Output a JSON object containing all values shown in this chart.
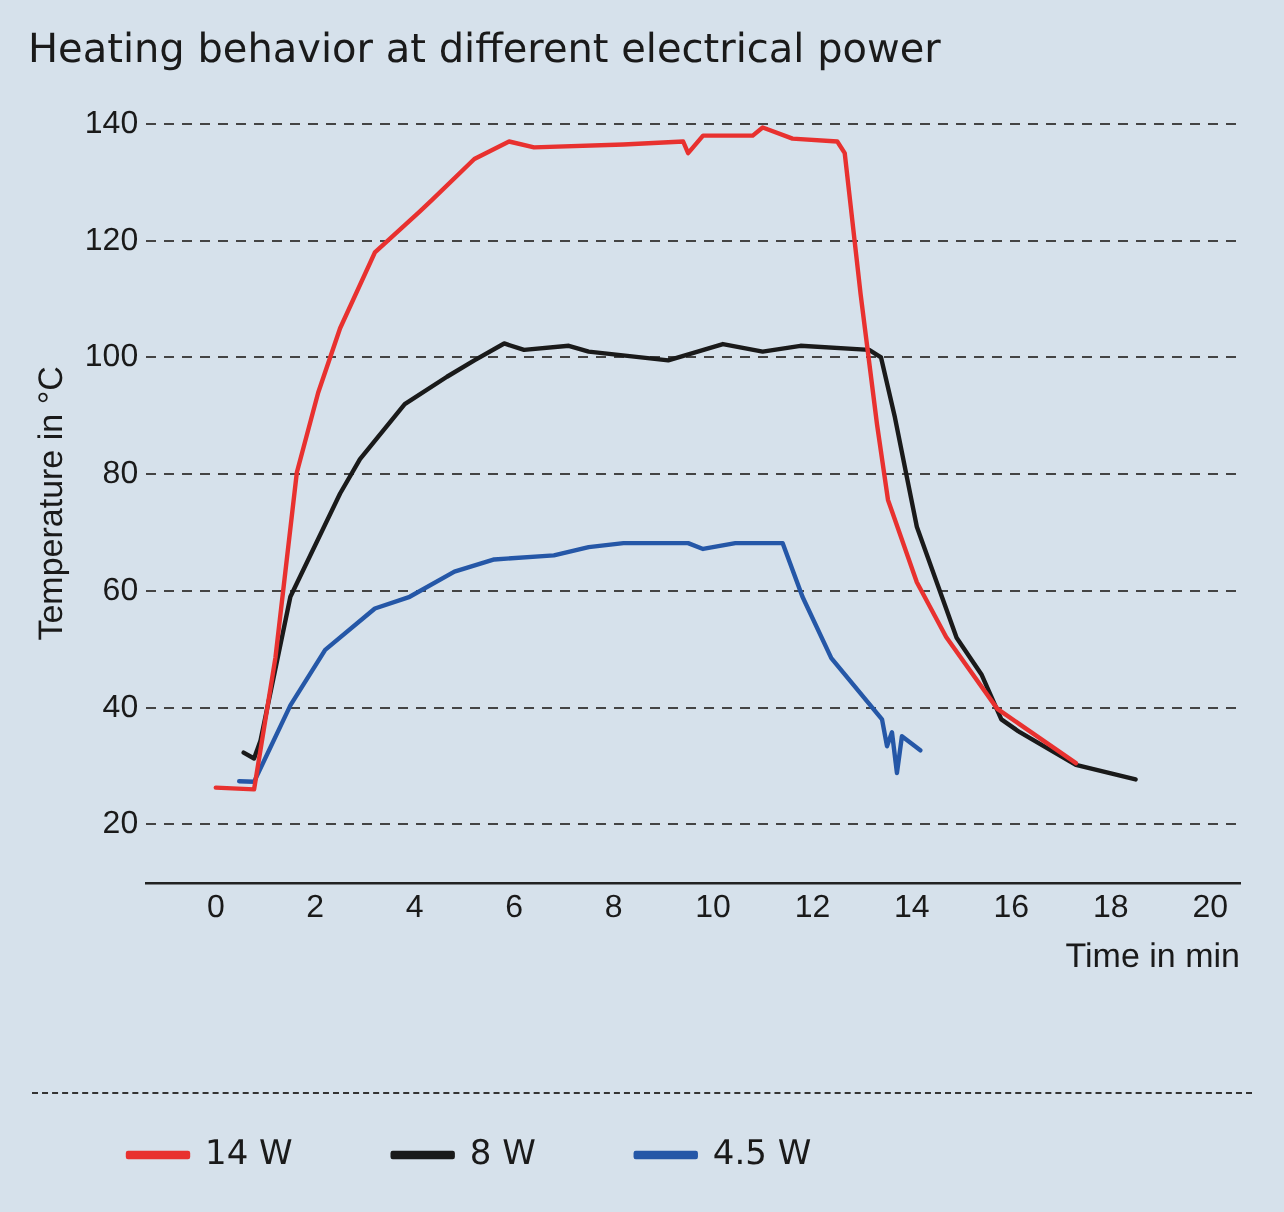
{
  "chart_data": {
    "type": "line",
    "title": "Heating behavior at different electrical power",
    "xlabel": "Time in min",
    "ylabel": "Temperature in °C",
    "xlim": [
      -1.4,
      20.6
    ],
    "xticks": [
      0,
      2,
      4,
      6,
      8,
      10,
      12,
      14,
      16,
      18,
      20
    ],
    "ylim": [
      10,
      140
    ],
    "yticks": [
      20,
      40,
      60,
      80,
      100,
      120,
      140
    ],
    "grid": "y",
    "legend": "bottom left",
    "marker": "none",
    "line_style": "solid",
    "series": [
      {
        "name": "14 W",
        "color": "#e8312f",
        "x": [
          0,
          0.77,
          1.2,
          1.63,
          2.06,
          2.5,
          3.2,
          4.1,
          4.35,
          5.2,
          5.9,
          6.4,
          8.2,
          9.4,
          9.5,
          9.8,
          10.8,
          11.0,
          11.6,
          12.5,
          12.65,
          12.97,
          13.3,
          13.52,
          14.1,
          14.69,
          15.72,
          17.3
        ],
        "values": [
          26.3,
          26,
          48.6,
          80.3,
          94,
          105,
          118,
          125,
          127,
          134,
          137,
          136,
          136.5,
          137,
          135,
          138,
          138,
          139.4,
          137.5,
          137,
          135,
          110.8,
          88.5,
          75.6,
          61.5,
          52.1,
          39.8,
          30.5
        ]
      },
      {
        "name": "8 W",
        "color": "#1a1a1a",
        "x": [
          0.56,
          0.77,
          0.9,
          1.5,
          2.5,
          2.9,
          3.8,
          4.65,
          5.2,
          5.8,
          6.2,
          7.1,
          7.5,
          9.1,
          10.2,
          11.0,
          11.76,
          13.14,
          13.38,
          13.66,
          14.1,
          14.9,
          15.4,
          15.8,
          16.17,
          17.3,
          18.5
        ],
        "values": [
          32.3,
          31.3,
          34.4,
          59,
          76.7,
          82.6,
          92,
          96.7,
          99.5,
          102.4,
          101.3,
          102,
          101,
          99.5,
          102.3,
          101,
          102,
          101.3,
          100,
          89.7,
          71,
          52,
          45.7,
          38,
          35.8,
          30.2,
          27.7
        ]
      },
      {
        "name": "4.5 W",
        "color": "#2557a7",
        "x": [
          0.47,
          0.77,
          1.5,
          2.2,
          3.2,
          3.9,
          4.8,
          5.6,
          6.8,
          7.5,
          8.2,
          9.5,
          9.8,
          10.45,
          11.4,
          11.8,
          12.38,
          13.4,
          13.5,
          13.6,
          13.7,
          13.8,
          14.17
        ],
        "values": [
          27.4,
          27.3,
          40.4,
          49.9,
          57,
          59,
          63.3,
          65.4,
          66.1,
          67.5,
          68.2,
          68.2,
          67.2,
          68.2,
          68.2,
          59,
          48.5,
          38,
          33.4,
          35.8,
          28.8,
          35.1,
          32.7
        ]
      }
    ]
  }
}
